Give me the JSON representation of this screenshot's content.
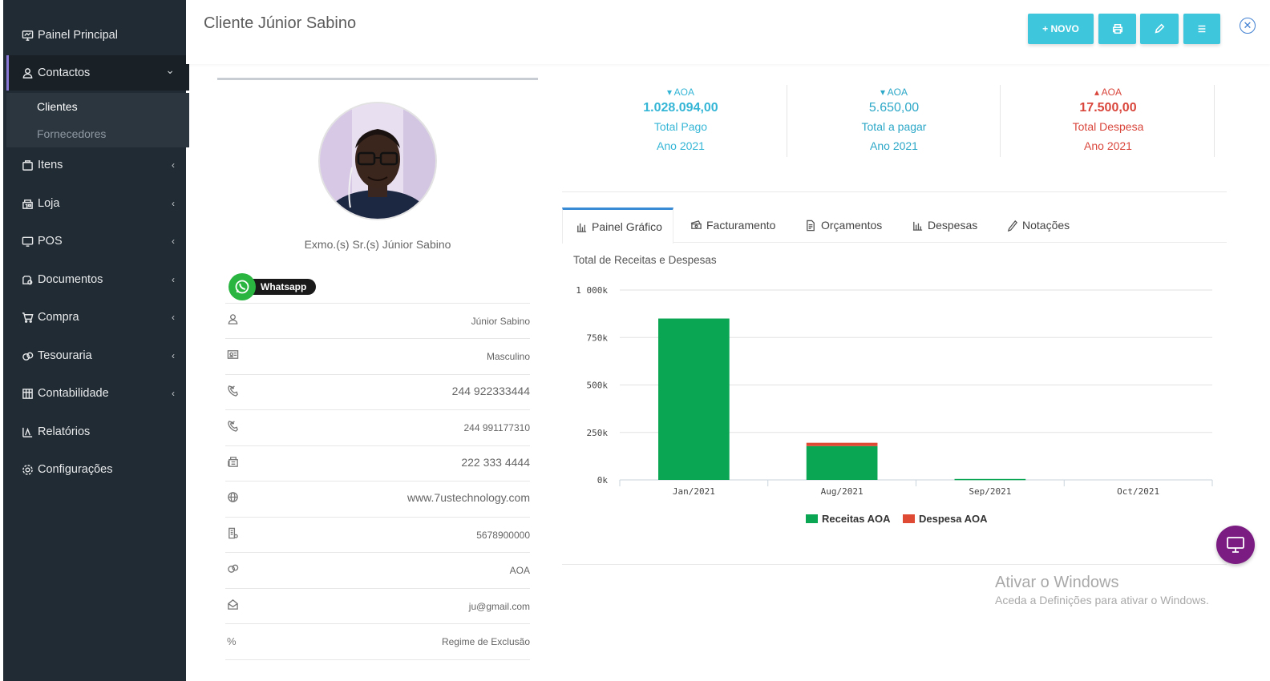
{
  "sidebar": {
    "items": [
      {
        "label": "Painel Principal",
        "icon": "dashboard-icon",
        "chevron": ""
      },
      {
        "label": "Contactos",
        "icon": "contacts-icon",
        "chevron": "⌄"
      },
      {
        "label": "Itens",
        "icon": "items-icon",
        "chevron": "‹"
      },
      {
        "label": "Loja",
        "icon": "store-icon",
        "chevron": "‹"
      },
      {
        "label": "POS",
        "icon": "monitor-icon",
        "chevron": "‹"
      },
      {
        "label": "Documentos",
        "icon": "documents-icon",
        "chevron": "‹"
      },
      {
        "label": "Compra",
        "icon": "cart-icon",
        "chevron": "‹"
      },
      {
        "label": "Tesouraria",
        "icon": "treasury-icon",
        "chevron": "‹"
      },
      {
        "label": "Contabilidade",
        "icon": "accounting-icon",
        "chevron": "‹"
      },
      {
        "label": "Relatórios",
        "icon": "reports-icon",
        "chevron": ""
      },
      {
        "label": "Configurações",
        "icon": "gear-icon",
        "chevron": ""
      }
    ],
    "contactos_sub": [
      "Clientes",
      "Fornecedores"
    ]
  },
  "header": {
    "title": "Cliente Júnior Sabino",
    "new_label": "+ NOVO",
    "close_symbol": "✕"
  },
  "profile": {
    "greeting": "Exmo.(s) Sr.(s) Júnior Sabino",
    "whatsapp_label": "Whatsapp",
    "rows": [
      {
        "icon": "user-icon",
        "value": "Júnior Sabino"
      },
      {
        "icon": "id-card-icon",
        "value": "Masculino"
      },
      {
        "icon": "phone-icon",
        "value": "244 922333444"
      },
      {
        "icon": "phone-icon",
        "value": "244 991177310"
      },
      {
        "icon": "fax-icon",
        "value": "222 333 4444"
      },
      {
        "icon": "globe-icon",
        "value": "www.7ustechnology.com"
      },
      {
        "icon": "document-icon",
        "value": "5678900000"
      },
      {
        "icon": "currency-icon",
        "value": "AOA"
      },
      {
        "icon": "email-icon",
        "value": "ju@gmail.com"
      },
      {
        "icon": "percent-icon",
        "value": "Regime de Exclusão"
      }
    ]
  },
  "stats": [
    {
      "arrow": "▾",
      "currency": "AOA",
      "amount": "1.028.094,00",
      "label": "Total Pago",
      "year": "Ano 2021",
      "color": "#35b6d6"
    },
    {
      "arrow": "▾",
      "currency": "AOA",
      "amount": "5.650,00",
      "label": "Total a pagar",
      "year": "Ano 2021",
      "color": "#2ba7c7"
    },
    {
      "arrow": "▴",
      "currency": "AOA",
      "amount": "17.500,00",
      "label": "Total Despesa",
      "year": "Ano 2021",
      "color": "#d9463c"
    }
  ],
  "tabs": [
    {
      "label": "Painel Gráfico",
      "icon": "bar-chart-icon"
    },
    {
      "label": "Facturamento",
      "icon": "money-icon"
    },
    {
      "label": "Orçamentos",
      "icon": "quote-icon"
    },
    {
      "label": "Despesas",
      "icon": "expenses-icon"
    },
    {
      "label": "Notações",
      "icon": "pen-icon"
    }
  ],
  "chart_data": {
    "type": "bar",
    "title": "Total de Receitas e Despesas",
    "categories": [
      "Jan/2021",
      "Aug/2021",
      "Sep/2021",
      "Oct/2021"
    ],
    "series": [
      {
        "name": "Receitas AOA",
        "color": "#0aa653",
        "values": [
          850000,
          178000,
          5000,
          0
        ]
      },
      {
        "name": "Despesa AOA",
        "color": "#df4a35",
        "values": [
          0,
          17500,
          0,
          0
        ]
      }
    ],
    "stacked": true,
    "y_ticks": [
      "0k",
      "250k",
      "500k",
      "750k",
      "1 000k"
    ],
    "ylim": [
      0,
      1000000
    ],
    "grid": true,
    "legend": "bottom"
  },
  "watermark": {
    "line1": "Ativar o Windows",
    "line2": "Aceda a Definições para ativar o Windows."
  }
}
